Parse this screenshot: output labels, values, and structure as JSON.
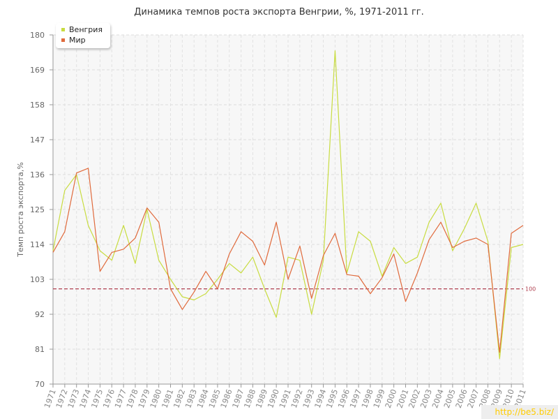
{
  "chart_data": {
    "type": "line",
    "title": "Динамика темпов роста экспорта Венгрии, %, 1971-2011 гг.",
    "xlabel": "",
    "ylabel": "Темп роста экспорта,%",
    "ylim": [
      70,
      180
    ],
    "yticks": [
      70,
      81,
      92,
      103,
      114,
      125,
      136,
      147,
      158,
      169,
      180
    ],
    "x": [
      1971,
      1972,
      1973,
      1974,
      1975,
      1976,
      1977,
      1978,
      1979,
      1980,
      1981,
      1982,
      1983,
      1984,
      1985,
      1986,
      1987,
      1988,
      1989,
      1990,
      1991,
      1992,
      1993,
      1994,
      1995,
      1996,
      1997,
      1998,
      1999,
      2000,
      2001,
      2002,
      2003,
      2004,
      2005,
      2006,
      2007,
      2008,
      2009,
      2010,
      2011
    ],
    "series": [
      {
        "name": "Венгрия",
        "color": "#c8dc40",
        "values": [
          112,
          131,
          136,
          120,
          112,
          109,
          120,
          108,
          125,
          109,
          103,
          97.5,
          96.5,
          98.5,
          103,
          108,
          105,
          110,
          100,
          91,
          110,
          109,
          92,
          109,
          175,
          105,
          118,
          115,
          104,
          113,
          108,
          110,
          121,
          127,
          112,
          119,
          127,
          115,
          78,
          113,
          114
        ]
      },
      {
        "name": "Мир",
        "color": "#e06a3c",
        "values": [
          111.5,
          118,
          136.5,
          138,
          105.5,
          111.5,
          112.5,
          116,
          125.5,
          121,
          100,
          93.5,
          99,
          105.5,
          100,
          111,
          118,
          115,
          107.5,
          121,
          103,
          113.5,
          97,
          110.5,
          117.5,
          104.5,
          104,
          98.5,
          103.5,
          111,
          96,
          105,
          115.5,
          121,
          113,
          115,
          116,
          114,
          80,
          117.5,
          120
        ]
      }
    ],
    "reference_line": {
      "value": 100,
      "label": "100",
      "color": "#b04050"
    },
    "grid": true,
    "legend": "top-left"
  },
  "watermark": "http://be5.biz/"
}
